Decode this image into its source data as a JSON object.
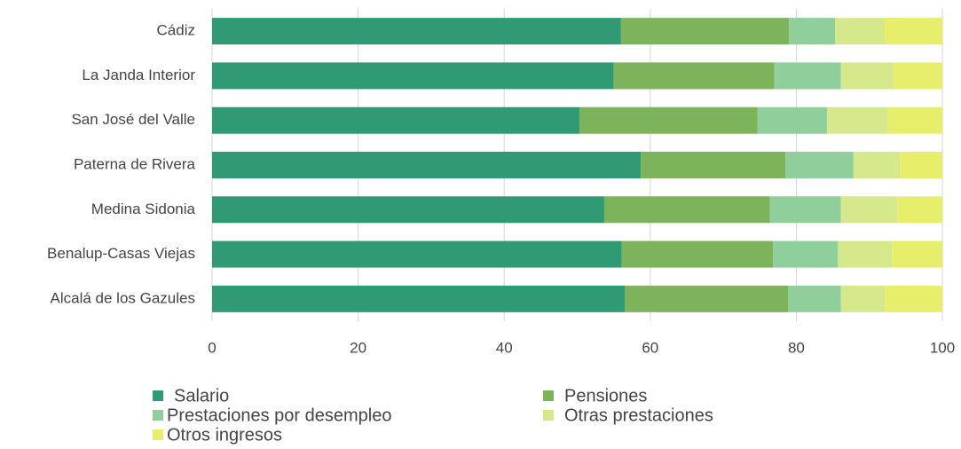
{
  "chart_data": {
    "type": "stacked_barh",
    "categories": [
      "Cádiz",
      "La Janda Interior",
      "San José del Valle",
      "Paterna de Rivera",
      "Medina Sidonia",
      "Benalup-Casas Viejas",
      "Alcalá de los Gazules"
    ],
    "series": [
      {
        "name": "Salario",
        "color": "#2f9a73",
        "values": [
          56.0,
          55.0,
          50.3,
          58.7,
          53.7,
          56.1,
          56.5
        ]
      },
      {
        "name": "Pensiones",
        "color": "#7cb35b",
        "values": [
          23.0,
          22.0,
          24.4,
          19.8,
          22.7,
          20.7,
          22.4
        ]
      },
      {
        "name": "Prestaciones por desempleo",
        "color": "#8fcf9c",
        "values": [
          6.3,
          9.1,
          9.5,
          9.3,
          9.7,
          8.9,
          7.2
        ]
      },
      {
        "name": "Otras prestaciones",
        "color": "#d5e88c",
        "values": [
          6.8,
          7.2,
          8.3,
          6.4,
          7.8,
          7.4,
          6.1
        ]
      },
      {
        "name": "Otros ingresos",
        "color": "#e7ee6b",
        "values": [
          7.9,
          6.7,
          7.5,
          5.8,
          6.1,
          6.9,
          7.8
        ]
      }
    ],
    "xlim": [
      0,
      100
    ],
    "xticks": [
      0,
      20,
      40,
      60,
      80,
      100
    ],
    "grid": true
  }
}
